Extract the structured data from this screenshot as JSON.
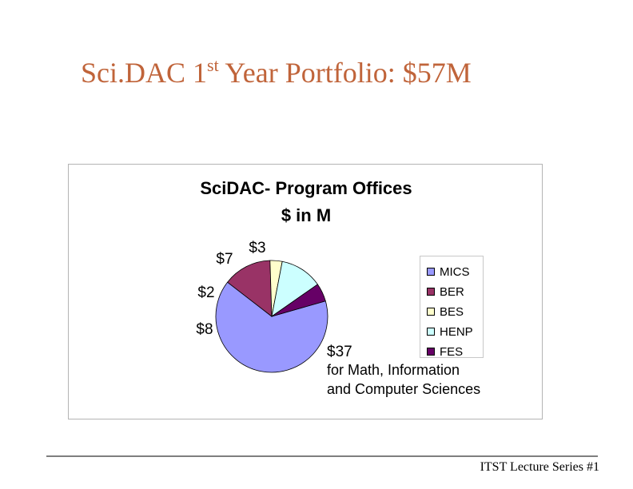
{
  "slide": {
    "title_main": "Sci.DAC 1",
    "title_sup": "st",
    "title_rest": " Year Portfolio: $57M",
    "title_color": "#c0643a",
    "footer": "ITST Lecture Series #1"
  },
  "chart_data": {
    "type": "pie",
    "title_line1": "SciDAC- Program Offices",
    "title_line2": "$ in M",
    "slices": [
      {
        "name": "MICS",
        "value": 37,
        "label": "$37",
        "color": "#9999ff"
      },
      {
        "name": "BER",
        "value": 8,
        "label": "$8",
        "color": "#993366"
      },
      {
        "name": "BES",
        "value": 2,
        "label": "$2",
        "color": "#ffffcc"
      },
      {
        "name": "HENP",
        "value": 7,
        "label": "$7",
        "color": "#ccffff"
      },
      {
        "name": "FES",
        "value": 3,
        "label": "$3",
        "color": "#660066"
      }
    ],
    "legend_placement": "right",
    "annotation": "for Math, Information and Computer Sciences"
  }
}
